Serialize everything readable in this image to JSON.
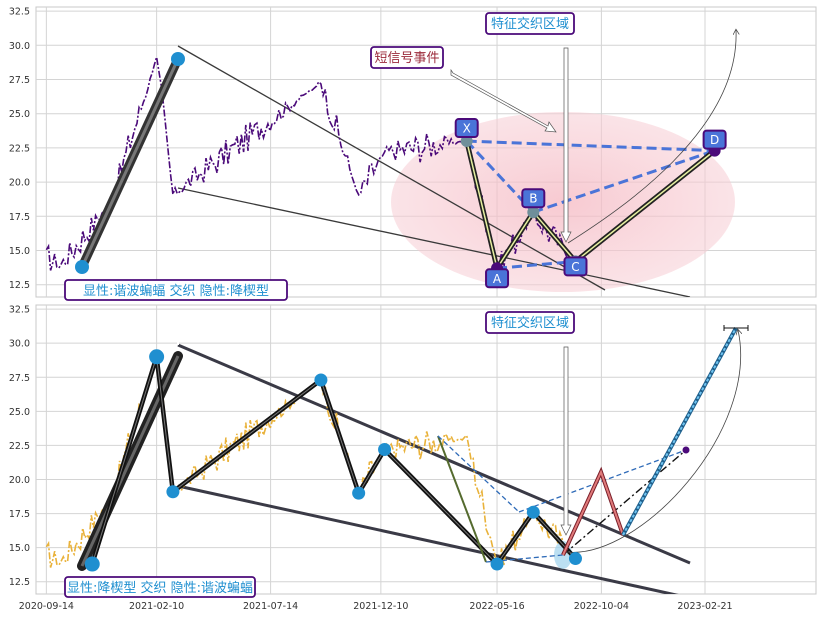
{
  "chart_data": [
    {
      "type": "line",
      "panel": "top",
      "x_dates": [
        "2020-09-14",
        "2021-02-10",
        "2021-07-14",
        "2021-12-10",
        "2022-05-16",
        "2022-10-04",
        "2023-02-21"
      ],
      "yticks": [
        "12.5",
        "15.0",
        "17.5",
        "20.0",
        "22.5",
        "25.0",
        "27.5",
        "30.0",
        "32.5"
      ],
      "ylim": [
        11.6,
        32.8
      ],
      "xlim": [
        "2020-08-31",
        "2023-07-21"
      ],
      "grid": true,
      "price_color": "#4b0a7a",
      "pattern_points": [
        {
          "label": "X",
          "date": "2022-04-05",
          "value": 23.0
        },
        {
          "label": "A",
          "date": "2022-05-16",
          "value": 13.7
        },
        {
          "label": "B",
          "date": "2022-07-04",
          "value": 17.8
        },
        {
          "label": "C",
          "date": "2022-08-30",
          "value": 14.2
        },
        {
          "label": "D",
          "date": "2023-03-06",
          "value": 22.3
        }
      ],
      "annotations": {
        "feature_zone": "特征交织区域",
        "short_signal": "短信号事件",
        "legend_text": "显性:谐波蝙蝠 交织 隐性:降楔型"
      }
    },
    {
      "type": "line",
      "panel": "bottom",
      "x_dates": [
        "2020-09-14",
        "2021-02-10",
        "2021-07-14",
        "2021-12-10",
        "2022-05-16",
        "2022-10-04",
        "2023-02-21"
      ],
      "yticks": [
        "12.5",
        "15.0",
        "17.5",
        "20.0",
        "22.5",
        "25.0",
        "27.5",
        "30.0",
        "32.5"
      ],
      "ylim": [
        11.6,
        32.8
      ],
      "grid": true,
      "price_color": "#e9b23a",
      "zigzag_points": [
        {
          "date": "2020-11-15",
          "value": 13.8
        },
        {
          "date": "2021-02-10",
          "value": 29.0
        },
        {
          "date": "2021-03-04",
          "value": 19.1
        },
        {
          "date": "2021-09-20",
          "value": 27.3
        },
        {
          "date": "2021-11-10",
          "value": 19.0
        },
        {
          "date": "2021-12-15",
          "value": 22.2
        },
        {
          "date": "2022-05-16",
          "value": 13.8
        },
        {
          "date": "2022-07-04",
          "value": 17.6
        },
        {
          "date": "2022-08-30",
          "value": 14.2
        }
      ],
      "annotations": {
        "feature_zone": "特征交织区域",
        "legend_text": "显性:降楔型 交织 隐性:谐波蝙蝠"
      }
    }
  ]
}
